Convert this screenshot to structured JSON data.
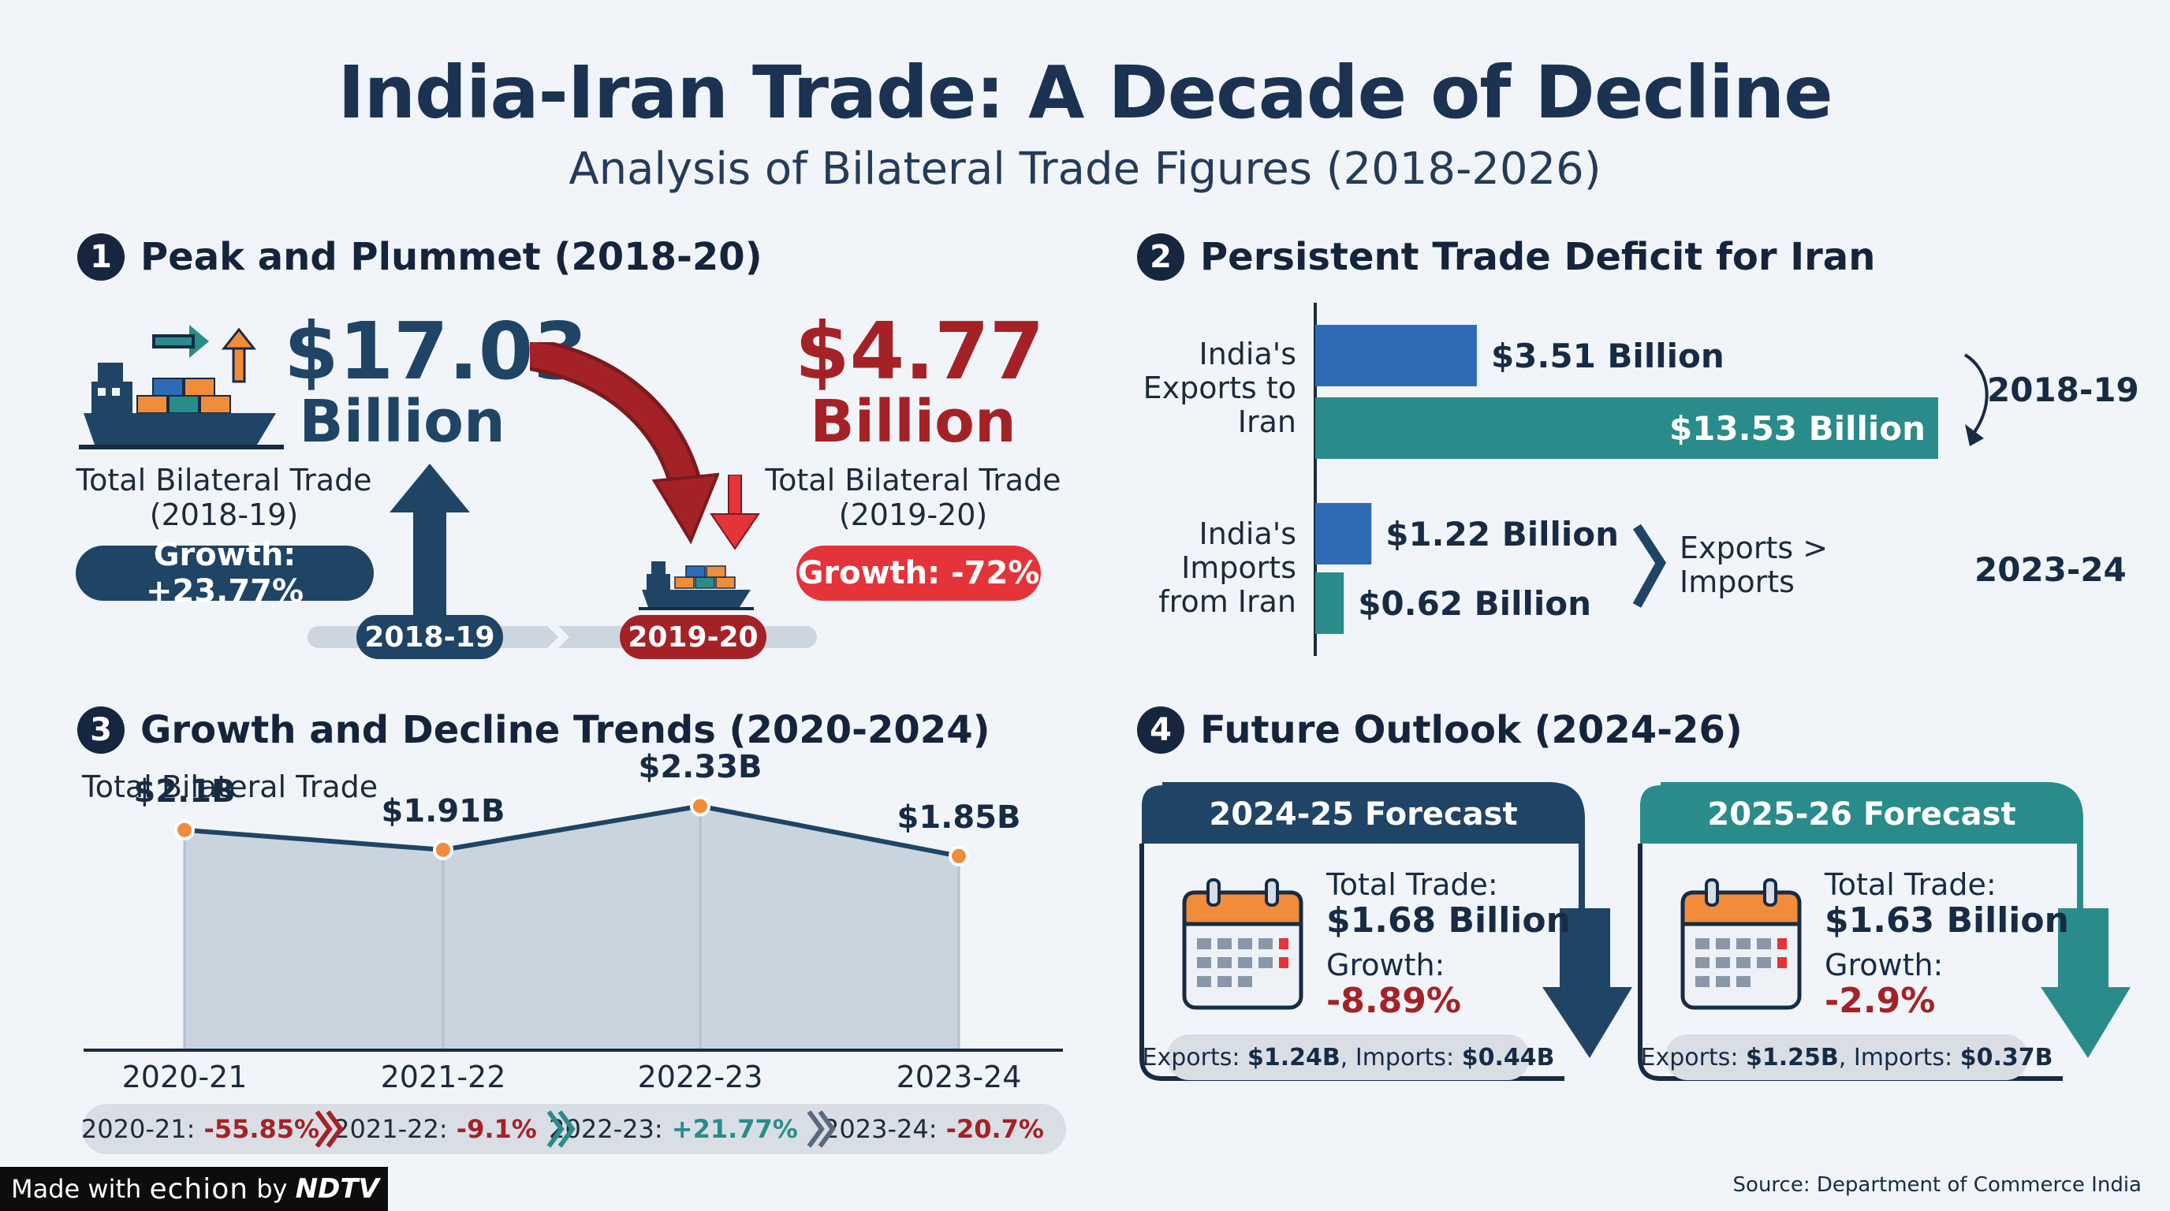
{
  "header": {
    "title": "India-Iran Trade: A Decade of Decline",
    "subtitle": "Analysis of Bilateral Trade Figures (2018-2026)"
  },
  "colors": {
    "navy": "#1f4466",
    "dark_red": "#a42226",
    "bright_red": "#e5333a",
    "blue": "#2f6bb4",
    "teal": "#2a8c8a",
    "orange": "#f08c3a",
    "area_fill": "#c9d4df"
  },
  "section1": {
    "number": "1",
    "heading": "Peak and Plummet (2018-20)",
    "left": {
      "value": "$17.03",
      "unit": "Billion",
      "label": "Total Bilateral Trade (2018-19)",
      "growth": "Growth: +23.77%",
      "year": "2018-19"
    },
    "right": {
      "value": "$4.77",
      "unit": "Billion",
      "label": "Total Bilateral Trade (2019-20)",
      "growth": "Growth: -72%",
      "year": "2019-20"
    },
    "icons": [
      "cargo-ship-icon",
      "export-arrow-icon",
      "import-arrow-icon",
      "down-arrow-icon"
    ]
  },
  "section2": {
    "number": "2",
    "heading": "Persistent Trade Deficit for Iran",
    "row_labels": [
      "India's Exports to Iran",
      "India's Imports from Iran"
    ],
    "note": "Exports > Imports"
  },
  "section3": {
    "number": "3",
    "heading": "Growth and Decline Trends (2020-2024)",
    "chart_label": "Total Bilateral Trade",
    "trends": [
      {
        "year": "2020-21:",
        "change": "-55.85%",
        "color": "#a42226"
      },
      {
        "year": "2021-22:",
        "change": "-9.1%",
        "color": "#a42226"
      },
      {
        "year": "2022-23:",
        "change": "+21.77%",
        "color": "#2a8c8a"
      },
      {
        "year": "2023-24:",
        "change": "-20.7%",
        "color": "#a42226"
      }
    ]
  },
  "section4": {
    "number": "4",
    "heading": "Future Outlook (2024-26)",
    "cards": [
      {
        "title": "2024-25 Forecast",
        "trade_label": "Total Trade:",
        "trade_value": "$1.68 Billion",
        "growth_label": "Growth:",
        "growth_value": "-8.89%",
        "exports_label": "Exports:",
        "exports_value": "$1.24B",
        "imports_label": "Imports:",
        "imports_value": "$0.44B",
        "color": "#1f4466"
      },
      {
        "title": "2025-26 Forecast",
        "trade_label": "Total Trade:",
        "trade_value": "$1.63 Billion",
        "growth_label": "Growth:",
        "growth_value": "-2.9%",
        "exports_label": "Exports:",
        "exports_value": "$1.25B",
        "imports_label": "Imports:",
        "imports_value": "$0.37B",
        "color": "#2a8c8a"
      }
    ]
  },
  "footer": {
    "made_with": "Made with",
    "brand": "echion",
    "by": "by",
    "partner": "NDTV",
    "source": "Source: Department of Commerce India"
  },
  "chart_data": [
    {
      "type": "bar",
      "orientation": "horizontal",
      "categories": [
        "2018-19",
        "2023-24"
      ],
      "series": [
        {
          "name": "India's Exports to Iran",
          "values": [
            13.53,
            1.22
          ],
          "labels": [
            "$13.53 Billion",
            "$1.22 Billion"
          ]
        },
        {
          "name": "India's Imports from Iran",
          "values": [
            3.51,
            0.62
          ],
          "labels": [
            "$3.51 Billion",
            "$0.62 Billion"
          ]
        }
      ],
      "xlim": [
        0,
        13.53
      ],
      "grid": false,
      "title": "",
      "xlabel": "",
      "ylabel": ""
    },
    {
      "type": "area",
      "title": "Total Bilateral Trade",
      "x": [
        "2020-21",
        "2021-22",
        "2022-23",
        "2023-24"
      ],
      "values": [
        2.1,
        1.91,
        2.33,
        1.85
      ],
      "point_labels": [
        "$2.1B",
        "$1.91B",
        "$2.33B",
        "$1.85B"
      ],
      "ylim": [
        0,
        2.5
      ],
      "grid": false,
      "xlabel": "",
      "ylabel": ""
    }
  ]
}
